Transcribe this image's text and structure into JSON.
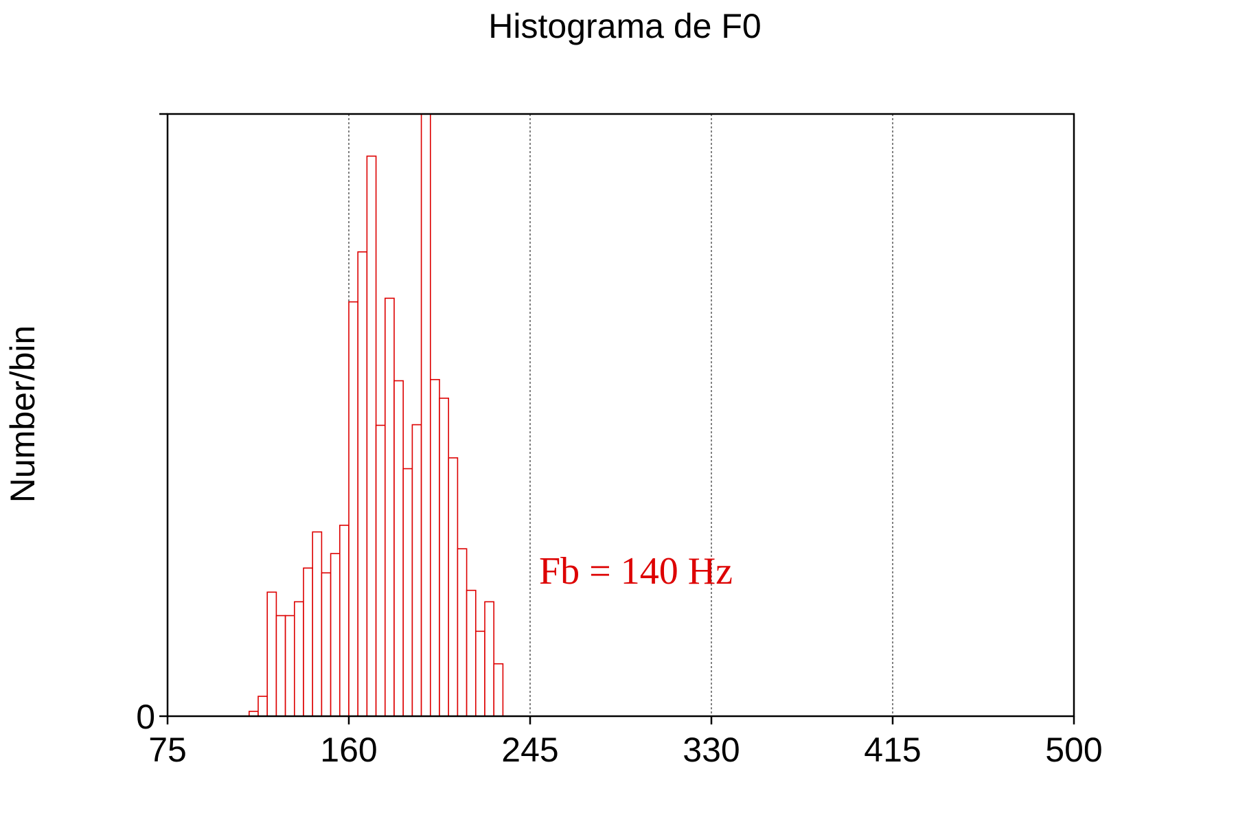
{
  "chart_data": {
    "type": "bar",
    "title": "Histograma de F0",
    "xlabel": "",
    "ylabel": "Number/bin",
    "xlim": [
      75,
      500
    ],
    "ylim": [
      0,
      100
    ],
    "x_ticks": [
      75,
      160,
      245,
      330,
      415,
      500
    ],
    "x_tick_labels": [
      "75",
      "160",
      "245",
      "330",
      "415",
      "500"
    ],
    "y_tick_labels": [
      "0"
    ],
    "grid": "vertical dashed at x ticks",
    "bar_color": "#dd0000",
    "bin_width": 4.25,
    "bins": [
      {
        "x0": 113.25,
        "value": 0.8
      },
      {
        "x0": 117.5,
        "value": 3.3
      },
      {
        "x0": 121.75,
        "value": 20.6
      },
      {
        "x0": 126.0,
        "value": 16.7
      },
      {
        "x0": 130.25,
        "value": 16.7
      },
      {
        "x0": 134.5,
        "value": 19.0
      },
      {
        "x0": 138.75,
        "value": 24.6
      },
      {
        "x0": 143.0,
        "value": 30.6
      },
      {
        "x0": 147.25,
        "value": 23.8
      },
      {
        "x0": 151.5,
        "value": 27.0
      },
      {
        "x0": 155.75,
        "value": 31.7
      },
      {
        "x0": 160.0,
        "value": 68.8
      },
      {
        "x0": 164.25,
        "value": 77.1
      },
      {
        "x0": 168.5,
        "value": 93.0
      },
      {
        "x0": 172.75,
        "value": 48.3
      },
      {
        "x0": 177.0,
        "value": 69.4
      },
      {
        "x0": 181.25,
        "value": 55.7
      },
      {
        "x0": 185.5,
        "value": 41.1
      },
      {
        "x0": 189.75,
        "value": 48.4
      },
      {
        "x0": 194.0,
        "value": 100.0
      },
      {
        "x0": 198.25,
        "value": 55.9
      },
      {
        "x0": 202.5,
        "value": 52.8
      },
      {
        "x0": 206.75,
        "value": 42.9
      },
      {
        "x0": 211.0,
        "value": 27.8
      },
      {
        "x0": 215.25,
        "value": 20.9
      },
      {
        "x0": 219.5,
        "value": 14.1
      },
      {
        "x0": 223.75,
        "value": 19.0
      },
      {
        "x0": 228.0,
        "value": 8.7
      }
    ],
    "annotation": {
      "text": "Fb = 140 Hz",
      "color": "#dd0000"
    }
  }
}
